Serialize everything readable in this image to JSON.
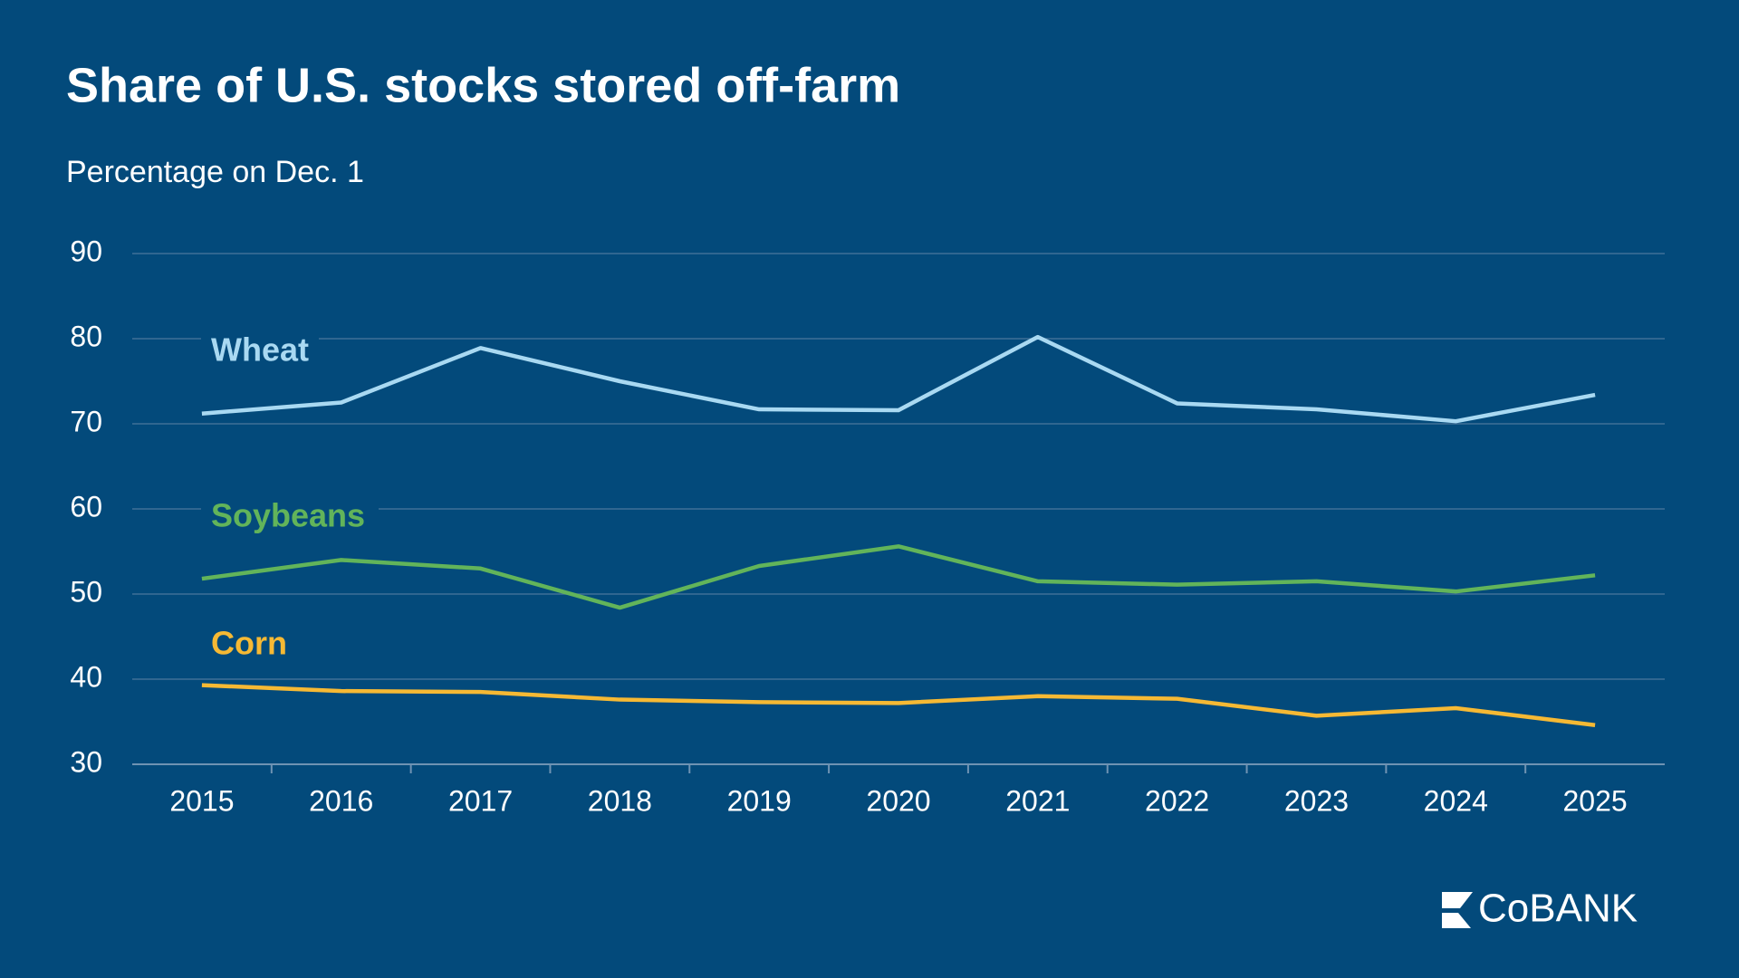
{
  "chart_data": {
    "type": "line",
    "title": "Share of U.S. stocks stored off-farm",
    "subtitle": "Percentage on Dec. 1",
    "categories": [
      "2015",
      "2016",
      "2017",
      "2018",
      "2019",
      "2020",
      "2021",
      "2022",
      "2023",
      "2024",
      "2025"
    ],
    "series": [
      {
        "name": "Wheat",
        "color": "#a9d9f2",
        "values": [
          71.2,
          72.5,
          78.9,
          75.0,
          71.7,
          71.6,
          80.2,
          72.4,
          71.7,
          70.3,
          73.4
        ]
      },
      {
        "name": "Soybeans",
        "color": "#62b45a",
        "values": [
          51.8,
          54.0,
          53.0,
          48.4,
          53.3,
          55.6,
          51.5,
          51.1,
          51.5,
          50.3,
          52.2
        ]
      },
      {
        "name": "Corn",
        "color": "#f6b934",
        "values": [
          39.3,
          38.6,
          38.5,
          37.6,
          37.3,
          37.2,
          38.0,
          37.7,
          35.7,
          36.6,
          34.6
        ]
      }
    ],
    "ylim": [
      30,
      90
    ],
    "yticks": [
      30,
      40,
      50,
      60,
      70,
      80,
      90
    ],
    "grid": true,
    "logo": "CoBANK"
  }
}
